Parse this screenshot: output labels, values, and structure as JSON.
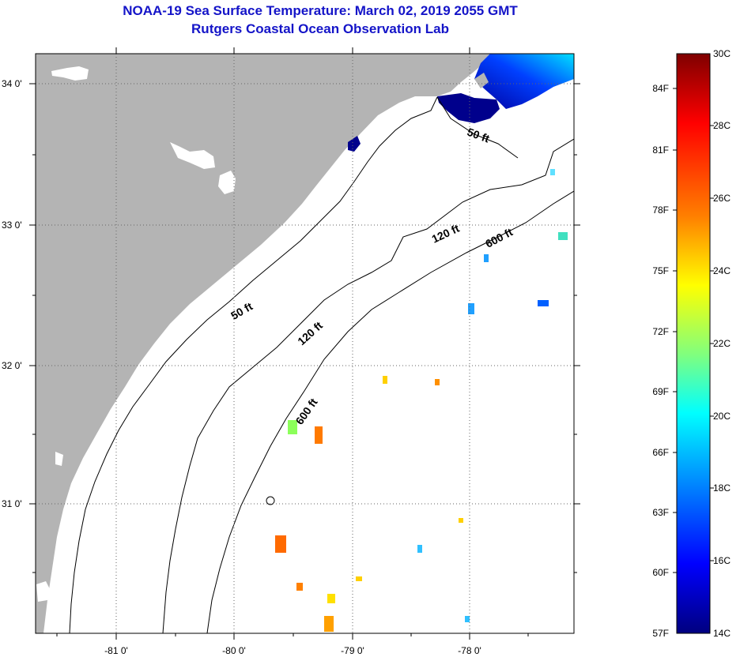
{
  "header": {
    "title": "NOAA-19 Sea Surface Temperature:  March 02, 2019 2055 GMT",
    "subtitle": "Rutgers Coastal Ocean Observation Lab"
  },
  "map": {
    "lat_ticks": [
      "34 0'",
      "33 0'",
      "32 0'",
      "31 0'"
    ],
    "lon_ticks": [
      "-81 0'",
      "-80 0'",
      "-79 0'",
      "-78 0'"
    ],
    "depth_contours": [
      "50 ft",
      "50 ft",
      "120 ft",
      "120 ft",
      "600 ft",
      "600 ft"
    ],
    "colors": {
      "land": "#b4b4b4",
      "ocean": "#ffffff",
      "grid": "#666666"
    }
  },
  "colorbar": {
    "fahrenheit_labels": [
      "84F",
      "81F",
      "78F",
      "75F",
      "72F",
      "69F",
      "66F",
      "63F",
      "60F",
      "57F"
    ],
    "celsius_labels": [
      "30C",
      "28C",
      "26C",
      "24C",
      "22C",
      "20C",
      "18C",
      "16C",
      "14C"
    ],
    "stops": [
      "#7f0000",
      "#ff0000",
      "#ff7f00",
      "#ffff00",
      "#7fff7f",
      "#00ffff",
      "#007fff",
      "#0000ff",
      "#00007f"
    ]
  }
}
